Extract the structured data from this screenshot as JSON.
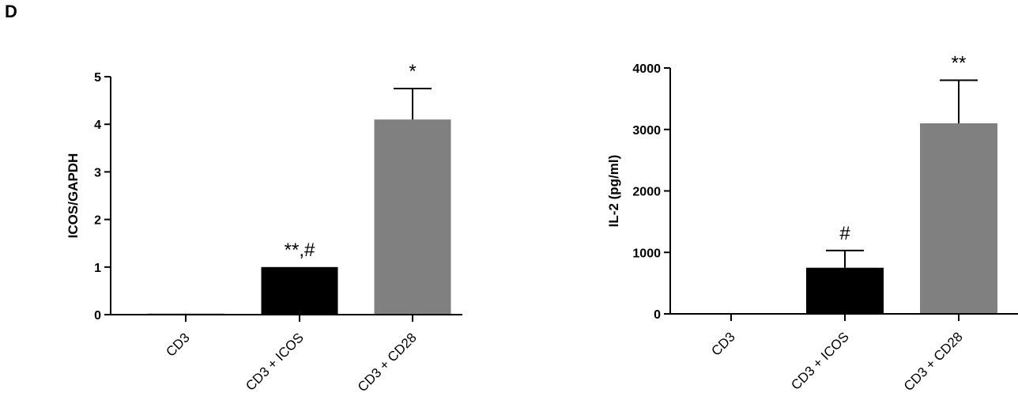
{
  "panel_label": "D",
  "chart_data": [
    {
      "type": "bar",
      "title": "",
      "xlabel": "",
      "ylabel": "ICOS/GAPDH",
      "ylim": [
        0,
        5
      ],
      "yticks": [
        0,
        1,
        2,
        3,
        4,
        5
      ],
      "categories": [
        "CD3",
        "CD3 + ICOS",
        "CD3 + CD28"
      ],
      "values": [
        0.02,
        1.0,
        4.1
      ],
      "errors": [
        0,
        0,
        0.65
      ],
      "colors": [
        "#000000",
        "#000000",
        "#808080"
      ],
      "annotations": [
        "",
        "**,#",
        "*"
      ],
      "grid": false
    },
    {
      "type": "bar",
      "title": "",
      "xlabel": "",
      "ylabel": "IL-2 (pg/ml)",
      "ylim": [
        0,
        4000
      ],
      "yticks": [
        0,
        1000,
        2000,
        3000,
        4000
      ],
      "categories": [
        "CD3",
        "CD3 + ICOS",
        "CD3 + CD28"
      ],
      "values": [
        0,
        750,
        3100
      ],
      "errors": [
        0,
        280,
        700
      ],
      "colors": [
        "#000000",
        "#000000",
        "#808080"
      ],
      "annotations": [
        "",
        "#",
        "**"
      ],
      "grid": false
    }
  ]
}
